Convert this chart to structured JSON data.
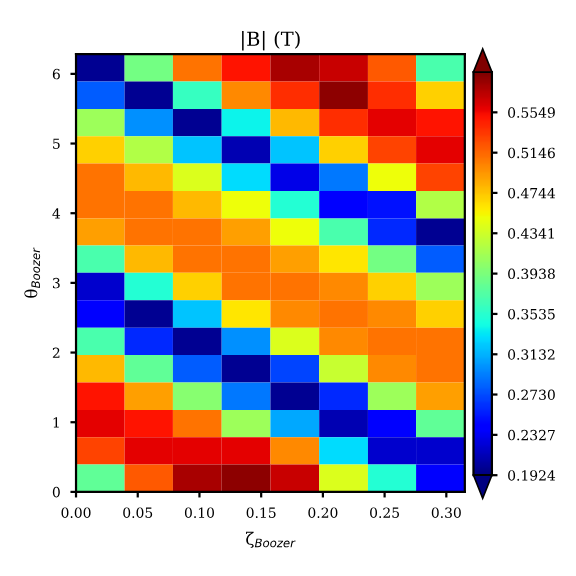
{
  "chart_data": {
    "type": "heatmap",
    "title": "|B| (T)",
    "xlabel": "ζ$_{Boozer}$",
    "ylabel": "θ$_{Boozer}$",
    "x": [
      0.0197,
      0.059,
      0.098,
      0.138,
      0.177,
      0.217,
      0.256,
      0.295
    ],
    "y": [
      6.09,
      5.69,
      5.3,
      4.91,
      4.52,
      4.12,
      3.73,
      3.34,
      2.95,
      2.55,
      2.16,
      1.77,
      1.37,
      0.98,
      0.59,
      0.2
    ],
    "cells": [
      [
        0.2,
        0.39,
        0.51,
        0.55,
        0.58,
        0.57,
        0.52,
        0.37
      ],
      [
        0.28,
        0.2,
        0.36,
        0.5,
        0.54,
        0.59,
        0.54,
        0.47
      ],
      [
        0.41,
        0.3,
        0.2,
        0.34,
        0.48,
        0.54,
        0.56,
        0.55
      ],
      [
        0.47,
        0.42,
        0.32,
        0.21,
        0.32,
        0.47,
        0.53,
        0.56
      ],
      [
        0.51,
        0.48,
        0.44,
        0.33,
        0.23,
        0.29,
        0.45,
        0.53
      ],
      [
        0.51,
        0.51,
        0.48,
        0.45,
        0.35,
        0.24,
        0.25,
        0.42
      ],
      [
        0.49,
        0.51,
        0.51,
        0.49,
        0.45,
        0.37,
        0.26,
        0.2
      ],
      [
        0.37,
        0.48,
        0.51,
        0.51,
        0.49,
        0.46,
        0.39,
        0.28
      ],
      [
        0.22,
        0.35,
        0.47,
        0.51,
        0.51,
        0.5,
        0.47,
        0.41
      ],
      [
        0.24,
        0.2,
        0.32,
        0.46,
        0.5,
        0.51,
        0.5,
        0.47
      ],
      [
        0.37,
        0.26,
        0.2,
        0.3,
        0.44,
        0.5,
        0.51,
        0.51
      ],
      [
        0.48,
        0.38,
        0.28,
        0.2,
        0.27,
        0.43,
        0.5,
        0.51
      ],
      [
        0.55,
        0.49,
        0.4,
        0.29,
        0.2,
        0.26,
        0.41,
        0.49
      ],
      [
        0.56,
        0.55,
        0.51,
        0.41,
        0.31,
        0.21,
        0.24,
        0.38
      ],
      [
        0.53,
        0.56,
        0.56,
        0.56,
        0.5,
        0.33,
        0.22,
        0.22
      ],
      [
        0.38,
        0.52,
        0.58,
        0.59,
        0.57,
        0.44,
        0.35,
        0.24
      ]
    ],
    "clim": [
      0.1924,
      0.5952
    ],
    "cticks": [
      0.1924,
      0.2327,
      {
        "value": 0.273,
        "label": "0.2730"
      },
      0.3132,
      0.3535,
      0.3938,
      0.4341,
      0.4744,
      0.5146,
      0.5549
    ],
    "xlim": [
      0,
      0.315
    ],
    "ylim": [
      0,
      6.283
    ],
    "xticks": [
      {
        "value": 0,
        "label": "0.00"
      },
      {
        "value": 0.05,
        "label": "0.05"
      },
      {
        "value": 0.1,
        "label": "0.10"
      },
      {
        "value": 0.15,
        "label": "0.15"
      },
      {
        "value": 0.2,
        "label": "0.20"
      },
      {
        "value": 0.25,
        "label": "0.25"
      },
      {
        "value": 0.3,
        "label": "0.30"
      }
    ],
    "yticks": [
      0,
      1,
      2,
      3,
      4,
      5,
      6
    ],
    "grid": false,
    "legend": false
  }
}
